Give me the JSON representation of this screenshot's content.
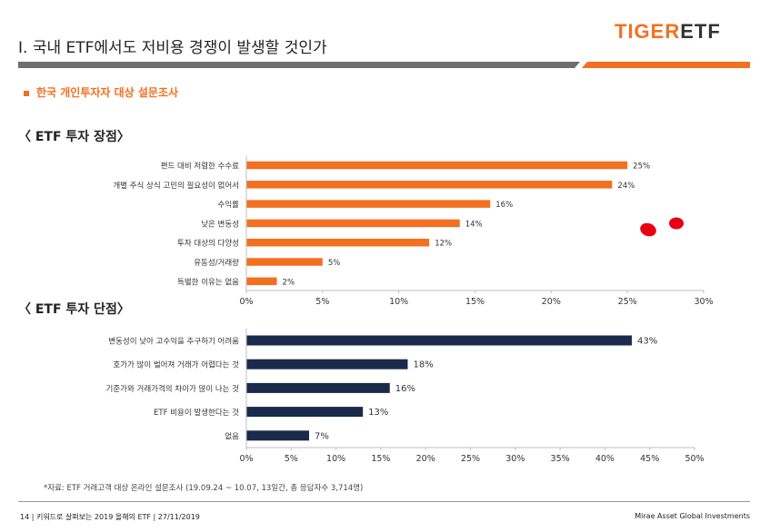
{
  "header": {
    "title": "I. 국내 ETF에서도 저비용 경쟁이 발생할 것인가",
    "logo_tiger": "TIGER",
    "logo_etf": "ETF"
  },
  "subtitle": "한국 개인투자자 대상 설문조사",
  "colors": {
    "orange": "#f37021",
    "navy": "#1b2a4a",
    "gray_bar": "#6d6e71",
    "mark_red": "#e60012"
  },
  "chart_data": [
    {
      "type": "bar",
      "orientation": "horizontal",
      "title": "〈 ETF 투자 장점〉",
      "categories": [
        "편드 대비 저렴한 수수료",
        "개별 주식 상식 고민의 필요성이 없어서",
        "수익률",
        "낮은 변동성",
        "투자 대상의 다양성",
        "유동성/거래량",
        "특별한 이유는 없음"
      ],
      "values": [
        25,
        24,
        16,
        14,
        12,
        5,
        2
      ],
      "value_labels": [
        "25%",
        "24%",
        "16%",
        "14%",
        "12%",
        "5%",
        "2%"
      ],
      "xlim": [
        0,
        30
      ],
      "xticks": [
        "0%",
        "5%",
        "10%",
        "15%",
        "20%",
        "25%",
        "30%"
      ],
      "color": "#f37021",
      "grid": false
    },
    {
      "type": "bar",
      "orientation": "horizontal",
      "title": "〈 ETF 투자 단점〉",
      "categories": [
        "변동성이 낮아 고수익을 추구하기 어려움",
        "호가가 많이 벌어져 거래가 어렵다는 것",
        "기준가와 거래가격의 차이가 많이 나는 것",
        "ETF 비용이 발생한다는 것",
        "없음"
      ],
      "values": [
        43,
        18,
        16,
        13,
        7
      ],
      "value_labels": [
        "43%",
        "18%",
        "16%",
        "13%",
        "7%"
      ],
      "xlim": [
        0,
        50
      ],
      "xticks": [
        "0%",
        "5%",
        "10%",
        "15%",
        "20%",
        "25%",
        "30%",
        "35%",
        "40%",
        "45%",
        "50%"
      ],
      "color": "#1b2a4a",
      "grid": false
    }
  ],
  "footnote": "*자료: ETF 거래고객 대상 온라인 설문조사 (19.09.24 ~ 10.07, 13일간, 총 응답자수 3,714명)",
  "footer": {
    "left": "14 | 키워드로 살펴보는 2019 올해의 ETF | 27/11/2019",
    "right": "Mirae Asset Global Investments"
  }
}
